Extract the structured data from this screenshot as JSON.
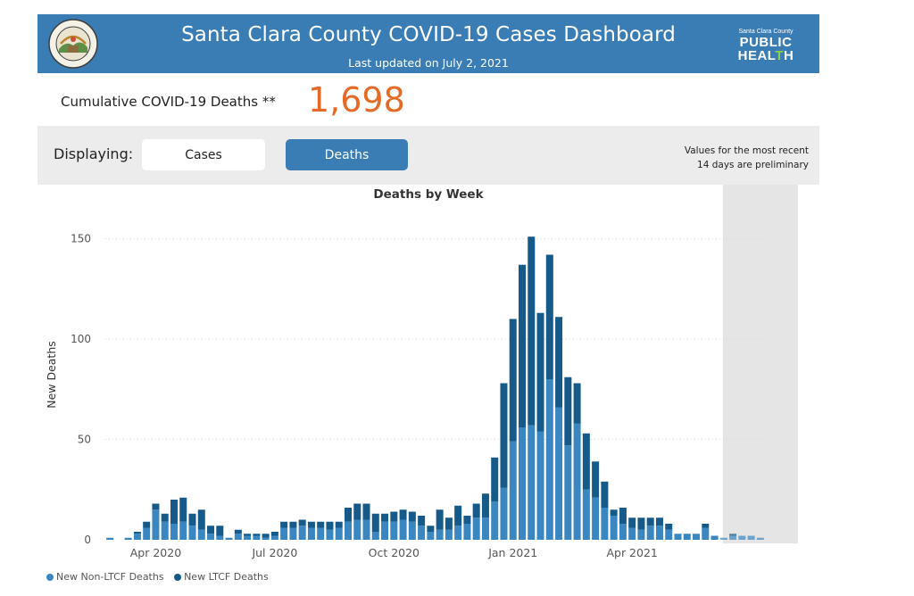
{
  "header": {
    "title": "Santa Clara County COVID-19 Cases Dashboard",
    "subtitle": "Last updated on July 2, 2021",
    "seal_text": "THE COUNTY OF SANTA CLARA",
    "logo_small": "Santa Clara County",
    "logo_line1": "PUBLIC",
    "logo_line2_a": "HEAL",
    "logo_line2_b": "T",
    "logo_line2_c": "H"
  },
  "summary": {
    "label": "Cumulative COVID-19 Deaths **",
    "value": "1,698"
  },
  "toolbar": {
    "displaying_label": "Displaying:",
    "cases_label": "Cases",
    "deaths_label": "Deaths",
    "note_line1": "Values for the most recent",
    "note_line2": "14 days are preliminary"
  },
  "colors": {
    "header_bg": "#3a7db4",
    "non_ltcf": "#3a86c0",
    "ltcf": "#165a8a",
    "accent_value": "#e56a28",
    "preliminary_shade": "#e5e5e5"
  },
  "chart_data": {
    "type": "bar",
    "stacked": true,
    "title": "Deaths by Week",
    "ylabel": "New Deaths",
    "ylim": [
      0,
      160
    ],
    "yticks": [
      0,
      50,
      100,
      150
    ],
    "x_tick_labels": [
      "Apr 2020",
      "Jul 2020",
      "Oct 2020",
      "Jan 2021",
      "Apr 2021"
    ],
    "x_tick_weeks": [
      5,
      18,
      31,
      44,
      57
    ],
    "preliminary_from_week": 67,
    "legend": "bottom-left",
    "series": [
      {
        "name": "New Non-LTCF Deaths",
        "values": [
          1,
          0,
          1,
          3,
          6,
          15,
          9,
          8,
          9,
          7,
          5,
          3,
          2,
          1,
          3,
          2,
          2,
          1,
          2,
          6,
          6,
          7,
          6,
          6,
          5,
          6,
          9,
          10,
          10,
          4,
          9,
          9,
          10,
          9,
          7,
          4,
          5,
          5,
          7,
          8,
          11,
          11,
          19,
          26,
          49,
          56,
          57,
          54,
          80,
          66,
          47,
          58,
          25,
          21,
          16,
          12,
          8,
          6,
          5,
          7,
          7,
          5,
          3,
          3,
          3,
          6,
          2,
          1,
          2,
          2,
          2,
          1
        ],
        "values_note": "weekly values read from the bars"
      },
      {
        "name": "New LTCF Deaths",
        "values": [
          0,
          0,
          0,
          1,
          3,
          3,
          4,
          12,
          12,
          6,
          10,
          4,
          5,
          0,
          2,
          1,
          1,
          2,
          2,
          3,
          3,
          3,
          3,
          3,
          4,
          3,
          7,
          8,
          8,
          9,
          4,
          5,
          5,
          5,
          5,
          3,
          10,
          6,
          10,
          4,
          7,
          12,
          22,
          52,
          61,
          81,
          94,
          59,
          62,
          45,
          34,
          20,
          28,
          18,
          13,
          3,
          8,
          5,
          6,
          4,
          4,
          3,
          0,
          0,
          0,
          2,
          0,
          0,
          1,
          0,
          0,
          0
        ]
      }
    ]
  }
}
